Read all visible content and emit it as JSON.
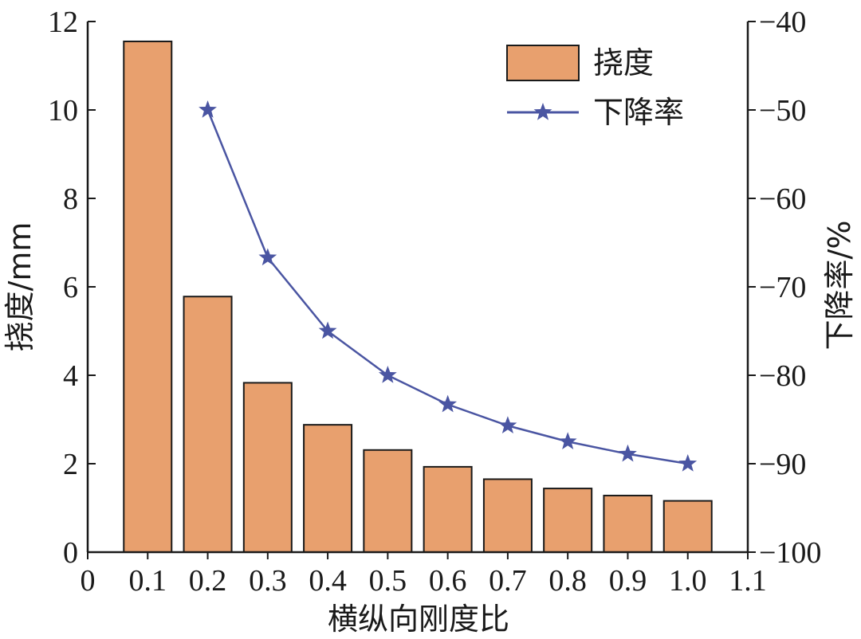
{
  "chart_data": {
    "type": "bar",
    "x_ticks": [
      "0",
      "0.1",
      "0.2",
      "0.3",
      "0.4",
      "0.5",
      "0.6",
      "0.7",
      "0.8",
      "0.9",
      "1.0",
      "1.1"
    ],
    "xlim": [
      0,
      1.1
    ],
    "xlabel": "横纵向刚度比",
    "ylabel_left": "挠度/mm",
    "ylabel_right": "下降率/%",
    "ylim_left": [
      0,
      12
    ],
    "ylim_right": [
      -100,
      -40
    ],
    "yticks_left": [
      "0",
      "2",
      "4",
      "6",
      "8",
      "10",
      "12"
    ],
    "yticks_right": [
      "−40",
      "−50",
      "−60",
      "−70",
      "−80",
      "−90",
      "−100"
    ],
    "series": [
      {
        "name": "挠度",
        "type": "bar",
        "axis": "left",
        "color": "#E8A06E",
        "x": [
          0.1,
          0.2,
          0.3,
          0.4,
          0.5,
          0.6,
          0.7,
          0.8,
          0.9,
          1.0
        ],
        "values": [
          11.55,
          5.78,
          3.83,
          2.88,
          2.31,
          1.93,
          1.65,
          1.44,
          1.28,
          1.16
        ]
      },
      {
        "name": "下降率",
        "type": "line",
        "axis": "right",
        "color": "#4A55A2",
        "marker": "star",
        "x": [
          0.2,
          0.3,
          0.4,
          0.5,
          0.6,
          0.7,
          0.8,
          0.9,
          1.0
        ],
        "values": [
          -50.0,
          -66.7,
          -75.0,
          -80.0,
          -83.3,
          -85.7,
          -87.5,
          -88.9,
          -90.0
        ]
      }
    ],
    "legend": [
      "挠度",
      "下降率"
    ],
    "legend_position": "top-right"
  }
}
